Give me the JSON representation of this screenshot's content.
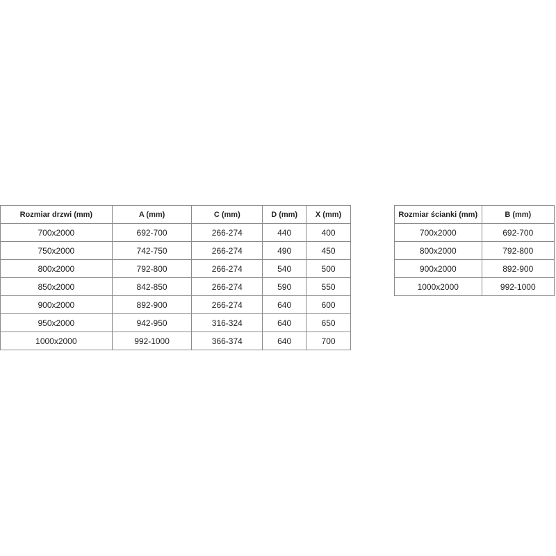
{
  "doors_table": {
    "headers": [
      "Rozmiar drzwi (mm)",
      "A (mm)",
      "C (mm)",
      "D (mm)",
      "X (mm)"
    ],
    "rows": [
      [
        "700x2000",
        "692-700",
        "266-274",
        "440",
        "400"
      ],
      [
        "750x2000",
        "742-750",
        "266-274",
        "490",
        "450"
      ],
      [
        "800x2000",
        "792-800",
        "266-274",
        "540",
        "500"
      ],
      [
        "850x2000",
        "842-850",
        "266-274",
        "590",
        "550"
      ],
      [
        "900x2000",
        "892-900",
        "266-274",
        "640",
        "600"
      ],
      [
        "950x2000",
        "942-950",
        "316-324",
        "640",
        "650"
      ],
      [
        "1000x2000",
        "992-1000",
        "366-374",
        "640",
        "700"
      ]
    ]
  },
  "wall_table": {
    "headers": [
      "Rozmiar ścianki (mm)",
      "B (mm)"
    ],
    "rows": [
      [
        "700x2000",
        "692-700"
      ],
      [
        "800x2000",
        "792-800"
      ],
      [
        "900x2000",
        "892-900"
      ],
      [
        "1000x2000",
        "992-1000"
      ]
    ]
  }
}
